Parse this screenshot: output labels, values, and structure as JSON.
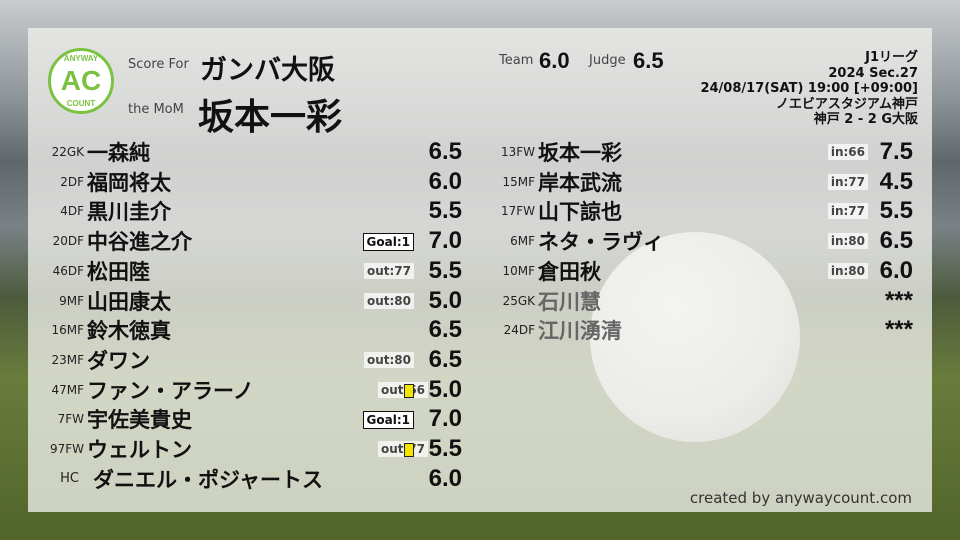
{
  "header": {
    "logo_top": "ANYWAY",
    "logo_mid": "AC",
    "logo_bottom": "COUNT",
    "score_for_label": "Score For",
    "team": "ガンバ大阪",
    "mom_label": "the MoM",
    "mom": "坂本一彩",
    "team_label": "Team",
    "team_score": "6.0",
    "judge_label": "Judge",
    "judge_score": "6.5"
  },
  "match": {
    "league": "J1リーグ",
    "section": "2024 Sec.27",
    "datetime": "24/08/17(SAT) 19:00 [+09:00]",
    "stadium": "ノエビアスタジアム神戸",
    "result": "神戸 2 - 2 G大阪"
  },
  "starters": [
    {
      "pos": "22GK",
      "name": "一森純",
      "score": "6.5"
    },
    {
      "pos": "2DF",
      "name": "福岡将太",
      "score": "6.0"
    },
    {
      "pos": "4DF",
      "name": "黒川圭介",
      "score": "5.5"
    },
    {
      "pos": "20DF",
      "name": "中谷進之介",
      "score": "7.0",
      "badge": "Goal:1",
      "goal": true
    },
    {
      "pos": "46DF",
      "name": "松田陸",
      "score": "5.5",
      "badge": "out:77"
    },
    {
      "pos": "9MF",
      "name": "山田康太",
      "score": "5.0",
      "badge": "out:80"
    },
    {
      "pos": "16MF",
      "name": "鈴木徳真",
      "score": "6.5"
    },
    {
      "pos": "23MF",
      "name": "ダワン",
      "score": "6.5",
      "badge": "out:80"
    },
    {
      "pos": "47MF",
      "name": "ファン・アラーノ",
      "score": "5.0",
      "badge": "out:66",
      "yellow": true
    },
    {
      "pos": "7FW",
      "name": "宇佐美貴史",
      "score": "7.0",
      "badge": "Goal:1",
      "goal": true
    },
    {
      "pos": "97FW",
      "name": "ウェルトン",
      "score": "5.5",
      "badge": "out:77",
      "yellow": true
    },
    {
      "pos": "HC",
      "name": "ダニエル・ポジャートス",
      "score": "6.0"
    }
  ],
  "subs": [
    {
      "pos": "13FW",
      "name": "坂本一彩",
      "score": "7.5",
      "badge": "in:66"
    },
    {
      "pos": "15MF",
      "name": "岸本武流",
      "score": "4.5",
      "badge": "in:77"
    },
    {
      "pos": "17FW",
      "name": "山下諒也",
      "score": "5.5",
      "badge": "in:77"
    },
    {
      "pos": "6MF",
      "name": "ネタ・ラヴィ",
      "score": "6.5",
      "badge": "in:80"
    },
    {
      "pos": "10MF",
      "name": "倉田秋",
      "score": "6.0",
      "badge": "in:80"
    },
    {
      "pos": "25GK",
      "name": "石川慧",
      "score": "***",
      "dnp": true
    },
    {
      "pos": "24DF",
      "name": "江川湧清",
      "score": "***",
      "dnp": true
    }
  ],
  "credit": "created by anywaycount.com",
  "colors": {
    "logo": "#7cc242",
    "yellow_card": "#f2e600"
  }
}
